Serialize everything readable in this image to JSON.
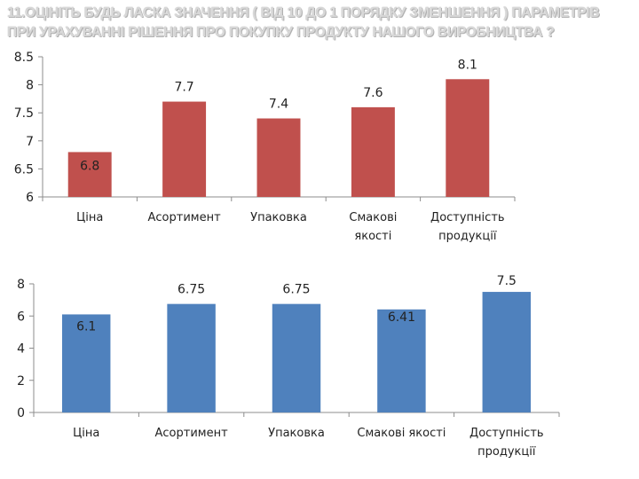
{
  "title": {
    "line1": "11.ОЦІНІТЬ БУДЬ ЛАСКА ЗНАЧЕННЯ ( ВІД 10 ДО 1 ПОРЯДКУ ЗМЕНШЕННЯ ) ПАРАМЕТРІВ",
    "line2": "ПРИ УРАХУВАННІ РІШЕННЯ ПРО ПОКУПКУ ПРОДУКТУ НАШОГО ВИРОБНИЦТВА ?"
  },
  "colors": {
    "series1": "#c0504d",
    "series2": "#4f81bd"
  },
  "chart_data": [
    {
      "type": "bar",
      "categories": [
        [
          "Ціна"
        ],
        [
          "Асортимент"
        ],
        [
          "Упаковка"
        ],
        [
          "Смакові",
          "якості"
        ],
        [
          "Доступність",
          "продукції"
        ]
      ],
      "values": [
        6.8,
        7.7,
        7.4,
        7.6,
        8.1
      ],
      "value_labels": [
        "6.8",
        "7.7",
        "7.4",
        "7.6",
        "8.1"
      ],
      "yticks": [
        "6",
        "6.5",
        "7",
        "7.5",
        "8",
        "8.5"
      ],
      "ylim": [
        6,
        8.5
      ],
      "grid": false,
      "legend": "none"
    },
    {
      "type": "bar",
      "categories": [
        [
          "Ціна"
        ],
        [
          "Асортимент"
        ],
        [
          "Упаковка"
        ],
        [
          "Смакові якості"
        ],
        [
          "Доступність",
          "продукції"
        ]
      ],
      "values": [
        6.1,
        6.75,
        6.75,
        6.41,
        7.5
      ],
      "value_labels": [
        "6.1",
        "6.75",
        "6.75",
        "6.41",
        "7.5"
      ],
      "yticks": [
        "0",
        "2",
        "4",
        "6",
        "8"
      ],
      "ylim": [
        0,
        8
      ],
      "grid": false,
      "legend": "none"
    }
  ]
}
